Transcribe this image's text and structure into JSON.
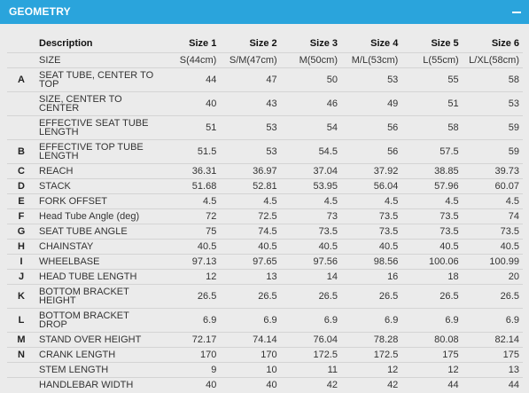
{
  "panel": {
    "title": "GEOMETRY",
    "collapse_icon": "minus-icon"
  },
  "table": {
    "headers": [
      "Description",
      "Size 1",
      "Size 2",
      "Size 3",
      "Size 4",
      "Size 5",
      "Size 6"
    ],
    "rows": [
      {
        "letter": "",
        "label": "SIZE",
        "values": [
          "S(44cm)",
          "S/M(47cm)",
          "M(50cm)",
          "M/L(53cm)",
          "L(55cm)",
          "L/XL(58cm)"
        ]
      },
      {
        "letter": "A",
        "label": "SEAT TUBE, CENTER TO TOP",
        "values": [
          "44",
          "47",
          "50",
          "53",
          "55",
          "58"
        ]
      },
      {
        "letter": "",
        "label": "SIZE, CENTER TO CENTER",
        "values": [
          "40",
          "43",
          "46",
          "49",
          "51",
          "53"
        ]
      },
      {
        "letter": "",
        "label": "EFFECTIVE SEAT TUBE LENGTH",
        "values": [
          "51",
          "53",
          "54",
          "56",
          "58",
          "59"
        ]
      },
      {
        "letter": "B",
        "label": "EFFECTIVE TOP TUBE LENGTH",
        "values": [
          "51.5",
          "53",
          "54.5",
          "56",
          "57.5",
          "59"
        ]
      },
      {
        "letter": "C",
        "label": "REACH",
        "values": [
          "36.31",
          "36.97",
          "37.04",
          "37.92",
          "38.85",
          "39.73"
        ]
      },
      {
        "letter": "D",
        "label": "STACK",
        "values": [
          "51.68",
          "52.81",
          "53.95",
          "56.04",
          "57.96",
          "60.07"
        ]
      },
      {
        "letter": "E",
        "label": "FORK OFFSET",
        "values": [
          "4.5",
          "4.5",
          "4.5",
          "4.5",
          "4.5",
          "4.5"
        ]
      },
      {
        "letter": "F",
        "label": "Head Tube Angle (deg)",
        "values": [
          "72",
          "72.5",
          "73",
          "73.5",
          "73.5",
          "74"
        ]
      },
      {
        "letter": "G",
        "label": "SEAT TUBE ANGLE",
        "values": [
          "75",
          "74.5",
          "73.5",
          "73.5",
          "73.5",
          "73.5"
        ]
      },
      {
        "letter": "H",
        "label": "CHAINSTAY",
        "values": [
          "40.5",
          "40.5",
          "40.5",
          "40.5",
          "40.5",
          "40.5"
        ]
      },
      {
        "letter": "I",
        "label": "WHEELBASE",
        "values": [
          "97.13",
          "97.65",
          "97.56",
          "98.56",
          "100.06",
          "100.99"
        ]
      },
      {
        "letter": "J",
        "label": "HEAD TUBE LENGTH",
        "values": [
          "12",
          "13",
          "14",
          "16",
          "18",
          "20"
        ]
      },
      {
        "letter": "K",
        "label": "BOTTOM BRACKET HEIGHT",
        "values": [
          "26.5",
          "26.5",
          "26.5",
          "26.5",
          "26.5",
          "26.5"
        ]
      },
      {
        "letter": "L",
        "label": "BOTTOM BRACKET DROP",
        "values": [
          "6.9",
          "6.9",
          "6.9",
          "6.9",
          "6.9",
          "6.9"
        ]
      },
      {
        "letter": "M",
        "label": "STAND OVER HEIGHT",
        "values": [
          "72.17",
          "74.14",
          "76.04",
          "78.28",
          "80.08",
          "82.14"
        ]
      },
      {
        "letter": "N",
        "label": "CRANK LENGTH",
        "values": [
          "170",
          "170",
          "172.5",
          "172.5",
          "175",
          "175"
        ]
      },
      {
        "letter": "",
        "label": "STEM LENGTH",
        "values": [
          "9",
          "10",
          "11",
          "12",
          "12",
          "13"
        ]
      },
      {
        "letter": "",
        "label": "HANDLEBAR WIDTH",
        "values": [
          "40",
          "40",
          "42",
          "42",
          "44",
          "44"
        ]
      }
    ]
  }
}
